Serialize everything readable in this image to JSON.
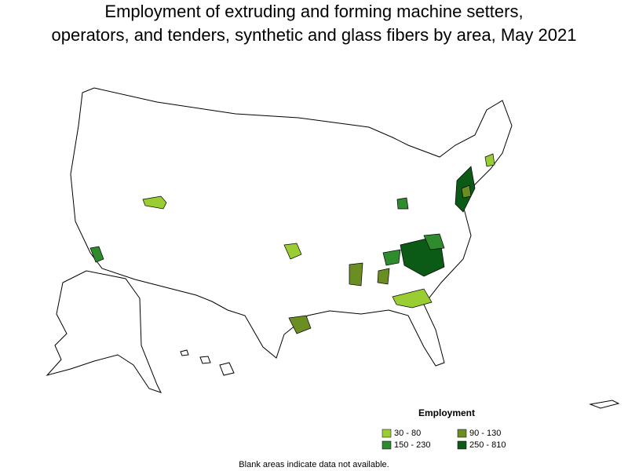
{
  "title": [
    "Employment of extruding and forming machine setters,",
    "operators, and tenders, synthetic and glass fibers by area, May 2021"
  ],
  "legend": {
    "title": "Employment",
    "items": [
      {
        "label": "30 - 80",
        "color": "#9acd32"
      },
      {
        "label": "90 - 130",
        "color": "#6b8e23"
      },
      {
        "label": "150 - 230",
        "color": "#2e8b2e"
      },
      {
        "label": "250 - 810",
        "color": "#0b5a16"
      }
    ]
  },
  "note": "Blank areas indicate data not available."
}
